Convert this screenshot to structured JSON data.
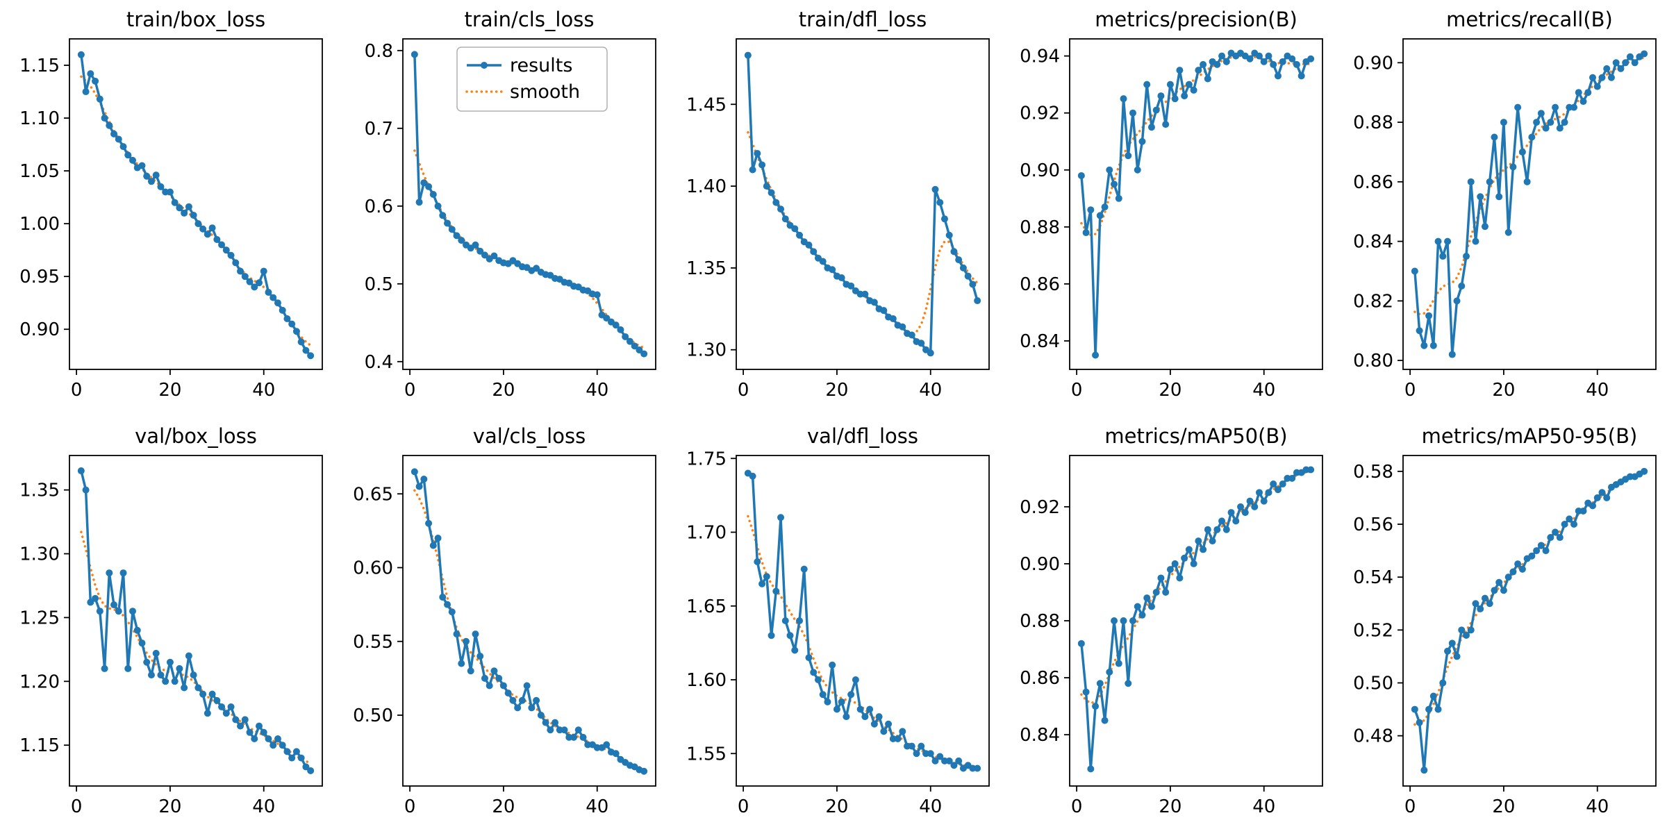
{
  "figure": {
    "background": "#ffffff",
    "results_color": "#1f77b4",
    "smooth_color": "#ff7f0e",
    "legend": {
      "entries": [
        "results",
        "smooth"
      ]
    }
  },
  "chart_data": {
    "type": "line",
    "epochs": [
      1,
      2,
      3,
      4,
      5,
      6,
      7,
      8,
      9,
      10,
      11,
      12,
      13,
      14,
      15,
      16,
      17,
      18,
      19,
      20,
      21,
      22,
      23,
      24,
      25,
      26,
      27,
      28,
      29,
      30,
      31,
      32,
      33,
      34,
      35,
      36,
      37,
      38,
      39,
      40,
      41,
      42,
      43,
      44,
      45,
      46,
      47,
      48,
      49,
      50
    ],
    "xlim": [
      -1.5,
      52.5
    ],
    "xticks": [
      0,
      20,
      40
    ],
    "legend_position": "upper-center",
    "grid": false,
    "charts": [
      {
        "title": "train/box_loss",
        "values": [
          1.16,
          1.125,
          1.142,
          1.135,
          1.118,
          1.1,
          1.093,
          1.085,
          1.08,
          1.073,
          1.065,
          1.06,
          1.053,
          1.055,
          1.045,
          1.04,
          1.046,
          1.035,
          1.03,
          1.03,
          1.02,
          1.015,
          1.01,
          1.016,
          1.008,
          1.0,
          0.995,
          0.99,
          0.996,
          0.985,
          0.98,
          0.975,
          0.97,
          0.963,
          0.955,
          0.95,
          0.945,
          0.94,
          0.944,
          0.955,
          0.935,
          0.93,
          0.925,
          0.918,
          0.91,
          0.905,
          0.898,
          0.888,
          0.88,
          0.875
        ],
        "ylim": [
          0.862,
          1.175
        ],
        "yticks": [
          0.9,
          0.95,
          1.0,
          1.05,
          1.1,
          1.15
        ],
        "ytick_decimals": 2,
        "show_legend": false
      },
      {
        "title": "train/cls_loss",
        "values": [
          0.795,
          0.605,
          0.63,
          0.625,
          0.615,
          0.6,
          0.588,
          0.578,
          0.57,
          0.562,
          0.556,
          0.55,
          0.546,
          0.55,
          0.542,
          0.537,
          0.532,
          0.536,
          0.53,
          0.527,
          0.526,
          0.53,
          0.526,
          0.522,
          0.521,
          0.517,
          0.52,
          0.515,
          0.512,
          0.511,
          0.507,
          0.506,
          0.502,
          0.501,
          0.497,
          0.496,
          0.492,
          0.491,
          0.487,
          0.486,
          0.46,
          0.456,
          0.451,
          0.447,
          0.441,
          0.432,
          0.426,
          0.42,
          0.415,
          0.41
        ],
        "ylim": [
          0.39,
          0.815
        ],
        "yticks": [
          0.4,
          0.5,
          0.6,
          0.7,
          0.8
        ],
        "ytick_decimals": 1,
        "show_legend": true
      },
      {
        "title": "train/dfl_loss",
        "values": [
          1.48,
          1.41,
          1.42,
          1.413,
          1.4,
          1.396,
          1.39,
          1.386,
          1.38,
          1.376,
          1.374,
          1.37,
          1.366,
          1.364,
          1.36,
          1.356,
          1.354,
          1.35,
          1.349,
          1.345,
          1.344,
          1.34,
          1.339,
          1.336,
          1.334,
          1.334,
          1.33,
          1.329,
          1.325,
          1.324,
          1.32,
          1.319,
          1.315,
          1.314,
          1.31,
          1.309,
          1.305,
          1.304,
          1.3,
          1.298,
          1.398,
          1.39,
          1.38,
          1.37,
          1.36,
          1.355,
          1.35,
          1.345,
          1.34,
          1.33
        ],
        "ylim": [
          1.288,
          1.49
        ],
        "yticks": [
          1.3,
          1.35,
          1.4,
          1.45
        ],
        "ytick_decimals": 2,
        "show_legend": false
      },
      {
        "title": "metrics/precision(B)",
        "values": [
          0.898,
          0.878,
          0.886,
          0.835,
          0.884,
          0.887,
          0.9,
          0.895,
          0.89,
          0.925,
          0.905,
          0.92,
          0.9,
          0.91,
          0.93,
          0.915,
          0.921,
          0.926,
          0.916,
          0.93,
          0.925,
          0.935,
          0.926,
          0.93,
          0.928,
          0.935,
          0.937,
          0.932,
          0.938,
          0.937,
          0.94,
          0.938,
          0.941,
          0.94,
          0.941,
          0.94,
          0.939,
          0.941,
          0.94,
          0.938,
          0.94,
          0.937,
          0.933,
          0.938,
          0.94,
          0.939,
          0.937,
          0.933,
          0.938,
          0.939
        ],
        "ylim": [
          0.83,
          0.946
        ],
        "yticks": [
          0.84,
          0.86,
          0.88,
          0.9,
          0.92,
          0.94
        ],
        "ytick_decimals": 2,
        "show_legend": false
      },
      {
        "title": "metrics/recall(B)",
        "values": [
          0.83,
          0.81,
          0.805,
          0.815,
          0.805,
          0.84,
          0.835,
          0.84,
          0.802,
          0.82,
          0.825,
          0.835,
          0.86,
          0.84,
          0.855,
          0.845,
          0.86,
          0.875,
          0.855,
          0.88,
          0.843,
          0.865,
          0.885,
          0.87,
          0.86,
          0.875,
          0.88,
          0.883,
          0.878,
          0.88,
          0.885,
          0.878,
          0.88,
          0.885,
          0.885,
          0.89,
          0.887,
          0.89,
          0.895,
          0.892,
          0.895,
          0.898,
          0.895,
          0.9,
          0.898,
          0.9,
          0.902,
          0.9,
          0.902,
          0.903
        ],
        "ylim": [
          0.797,
          0.908
        ],
        "yticks": [
          0.8,
          0.82,
          0.84,
          0.86,
          0.88,
          0.9
        ],
        "ytick_decimals": 2,
        "show_legend": false
      },
      {
        "title": "val/box_loss",
        "values": [
          1.365,
          1.35,
          1.262,
          1.265,
          1.255,
          1.21,
          1.285,
          1.26,
          1.255,
          1.285,
          1.21,
          1.255,
          1.24,
          1.23,
          1.215,
          1.205,
          1.222,
          1.205,
          1.2,
          1.215,
          1.2,
          1.21,
          1.195,
          1.22,
          1.205,
          1.195,
          1.19,
          1.175,
          1.19,
          1.185,
          1.18,
          1.175,
          1.18,
          1.17,
          1.165,
          1.17,
          1.16,
          1.155,
          1.165,
          1.16,
          1.155,
          1.15,
          1.155,
          1.15,
          1.145,
          1.14,
          1.145,
          1.14,
          1.133,
          1.13
        ],
        "ylim": [
          1.118,
          1.377
        ],
        "yticks": [
          1.15,
          1.2,
          1.25,
          1.3,
          1.35
        ],
        "ytick_decimals": 2,
        "show_legend": false
      },
      {
        "title": "val/cls_loss",
        "values": [
          0.665,
          0.655,
          0.66,
          0.63,
          0.615,
          0.62,
          0.58,
          0.575,
          0.57,
          0.555,
          0.535,
          0.55,
          0.53,
          0.555,
          0.54,
          0.525,
          0.52,
          0.53,
          0.525,
          0.52,
          0.515,
          0.51,
          0.505,
          0.51,
          0.52,
          0.505,
          0.51,
          0.5,
          0.495,
          0.49,
          0.495,
          0.49,
          0.49,
          0.485,
          0.485,
          0.49,
          0.485,
          0.48,
          0.48,
          0.478,
          0.478,
          0.48,
          0.475,
          0.474,
          0.47,
          0.468,
          0.466,
          0.465,
          0.463,
          0.462
        ],
        "ylim": [
          0.452,
          0.676
        ],
        "yticks": [
          0.5,
          0.55,
          0.6,
          0.65
        ],
        "ytick_decimals": 2,
        "show_legend": false
      },
      {
        "title": "val/dfl_loss",
        "values": [
          1.74,
          1.738,
          1.68,
          1.665,
          1.67,
          1.63,
          1.66,
          1.71,
          1.64,
          1.63,
          1.62,
          1.64,
          1.675,
          1.615,
          1.605,
          1.6,
          1.59,
          1.585,
          1.61,
          1.58,
          1.585,
          1.575,
          1.59,
          1.6,
          1.58,
          1.575,
          1.58,
          1.57,
          1.575,
          1.565,
          1.57,
          1.56,
          1.56,
          1.565,
          1.555,
          1.555,
          1.55,
          1.555,
          1.55,
          1.55,
          1.545,
          1.548,
          1.545,
          1.545,
          1.542,
          1.545,
          1.54,
          1.542,
          1.54,
          1.54
        ],
        "ylim": [
          1.528,
          1.752
        ],
        "yticks": [
          1.55,
          1.6,
          1.65,
          1.7,
          1.75
        ],
        "ytick_decimals": 2,
        "show_legend": false
      },
      {
        "title": "metrics/mAP50(B)",
        "values": [
          0.872,
          0.855,
          0.828,
          0.85,
          0.858,
          0.845,
          0.862,
          0.88,
          0.865,
          0.88,
          0.858,
          0.88,
          0.885,
          0.882,
          0.888,
          0.885,
          0.89,
          0.895,
          0.89,
          0.898,
          0.9,
          0.895,
          0.902,
          0.905,
          0.9,
          0.908,
          0.905,
          0.912,
          0.908,
          0.912,
          0.915,
          0.912,
          0.918,
          0.915,
          0.92,
          0.918,
          0.922,
          0.92,
          0.925,
          0.922,
          0.925,
          0.928,
          0.926,
          0.928,
          0.93,
          0.93,
          0.932,
          0.932,
          0.933,
          0.933
        ],
        "ylim": [
          0.822,
          0.938
        ],
        "yticks": [
          0.84,
          0.86,
          0.88,
          0.9,
          0.92
        ],
        "ytick_decimals": 2,
        "show_legend": false
      },
      {
        "title": "metrics/mAP50-95(B)",
        "values": [
          0.49,
          0.485,
          0.467,
          0.49,
          0.495,
          0.49,
          0.5,
          0.512,
          0.515,
          0.51,
          0.52,
          0.518,
          0.52,
          0.53,
          0.528,
          0.532,
          0.53,
          0.535,
          0.538,
          0.535,
          0.54,
          0.542,
          0.545,
          0.543,
          0.547,
          0.548,
          0.55,
          0.552,
          0.55,
          0.555,
          0.557,
          0.555,
          0.56,
          0.562,
          0.56,
          0.565,
          0.565,
          0.568,
          0.567,
          0.57,
          0.572,
          0.57,
          0.574,
          0.575,
          0.576,
          0.577,
          0.578,
          0.578,
          0.579,
          0.58
        ],
        "ylim": [
          0.461,
          0.586
        ],
        "yticks": [
          0.48,
          0.5,
          0.52,
          0.54,
          0.56,
          0.58
        ],
        "ytick_decimals": 2,
        "show_legend": false
      }
    ]
  }
}
